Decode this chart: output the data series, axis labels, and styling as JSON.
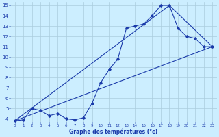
{
  "xlabel": "Graphe des températures (°c)",
  "bg_color": "#cceeff",
  "grid_color": "#aaccdd",
  "line_color": "#1a3aaa",
  "xlim": [
    -0.5,
    23.5
  ],
  "ylim": [
    3.7,
    15.3
  ],
  "xticks": [
    0,
    1,
    2,
    3,
    4,
    5,
    6,
    7,
    8,
    9,
    10,
    11,
    12,
    13,
    14,
    15,
    16,
    17,
    18,
    19,
    20,
    21,
    22,
    23
  ],
  "yticks": [
    4,
    5,
    6,
    7,
    8,
    9,
    10,
    11,
    12,
    13,
    14,
    15
  ],
  "line1_x": [
    0,
    1,
    2,
    3,
    4,
    5,
    6,
    7,
    8,
    9,
    10,
    11,
    12,
    13,
    14,
    15,
    16,
    17,
    18,
    19,
    20,
    21,
    22,
    23
  ],
  "line1_y": [
    3.8,
    3.9,
    5.0,
    4.8,
    4.3,
    4.5,
    4.0,
    3.9,
    4.1,
    5.5,
    7.5,
    8.8,
    9.8,
    12.8,
    13.0,
    13.2,
    14.0,
    15.0,
    15.0,
    12.8,
    12.0,
    11.8,
    11.0,
    11.0
  ],
  "line2_x": [
    0,
    23
  ],
  "line2_y": [
    3.8,
    11.0
  ],
  "line3_x": [
    0,
    18,
    23
  ],
  "line3_y": [
    3.8,
    15.0,
    11.0
  ]
}
